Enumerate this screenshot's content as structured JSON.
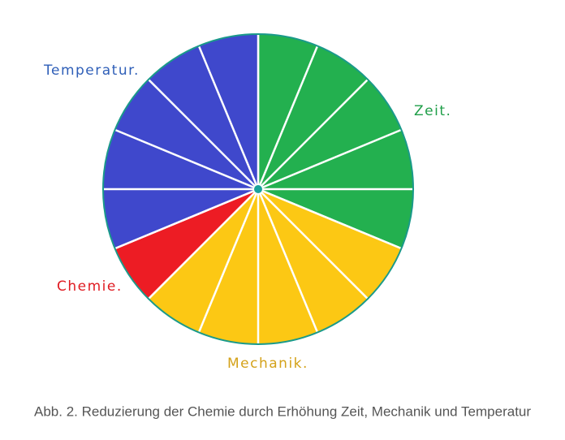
{
  "chart_data": {
    "type": "pie",
    "caption": "Abb. 2. Reduzierung der Chemie durch Erhöhung Zeit, Mechanik und Temperatur",
    "categories": [
      "Zeit.",
      "Mechanik.",
      "Chemie.",
      "Temperatur."
    ],
    "values": [
      5,
      5,
      1,
      5
    ],
    "colors": [
      "#23b04f",
      "#fcc814",
      "#ed1c24",
      "#3f48cc"
    ]
  }
}
